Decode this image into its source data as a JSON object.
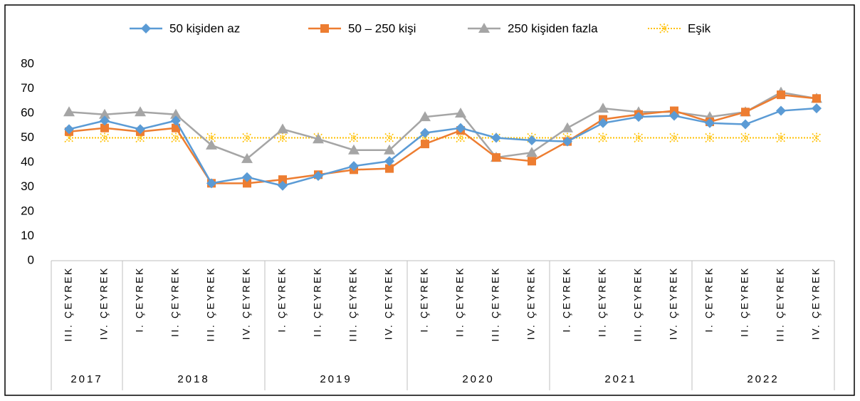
{
  "chart_data": {
    "type": "line",
    "categories": [
      "III. ÇEYREK",
      "IV. ÇEYREK",
      "I. ÇEYREK",
      "II. ÇEYREK",
      "III. ÇEYREK",
      "IV. ÇEYREK",
      "I. ÇEYREK",
      "II. ÇEYREK",
      "III. ÇEYREK",
      "IV. ÇEYREK",
      "I. ÇEYREK",
      "II. ÇEYREK",
      "III. ÇEYREK",
      "IV. ÇEYREK",
      "I. ÇEYREK",
      "II. ÇEYREK",
      "III. ÇEYREK",
      "IV. ÇEYREK",
      "I. ÇEYREK",
      "II. ÇEYREK",
      "III. ÇEYREK",
      "IV. ÇEYREK"
    ],
    "category_years": [
      "2017",
      "2017",
      "2018",
      "2018",
      "2018",
      "2018",
      "2019",
      "2019",
      "2019",
      "2019",
      "2020",
      "2020",
      "2020",
      "2020",
      "2021",
      "2021",
      "2021",
      "2021",
      "2022",
      "2022",
      "2022",
      "2022"
    ],
    "series": [
      {
        "name": "50 kişiden az",
        "color": "#5b9bd5",
        "marker": "diamond",
        "values": [
          53.5,
          57,
          53.5,
          57,
          31.5,
          34,
          30.5,
          34.5,
          38.5,
          40.5,
          52,
          54,
          50,
          49,
          48.5,
          56,
          58.5,
          59,
          56,
          55.5,
          61,
          62
        ]
      },
      {
        "name": "50 – 250 kişi",
        "color": "#ed7d31",
        "marker": "square",
        "values": [
          52.5,
          54,
          52.5,
          54,
          31.5,
          31.5,
          33,
          35,
          37,
          37.5,
          47.5,
          53,
          42,
          40.5,
          48.5,
          57.5,
          59.5,
          61,
          56.5,
          60.5,
          67.5,
          66
        ]
      },
      {
        "name": "250 kişiden fazla",
        "color": "#a5a5a5",
        "marker": "triangle",
        "values": [
          60.5,
          59.5,
          60.5,
          59.5,
          47,
          41.5,
          53.5,
          49.5,
          45,
          45,
          58.5,
          60,
          42,
          44,
          54,
          62,
          60.5,
          60.5,
          58.5,
          60.5,
          68.5,
          66
        ]
      },
      {
        "name": "Eşik",
        "color": "#ffc000",
        "marker": "star",
        "dashed": true,
        "values": [
          50,
          50,
          50,
          50,
          50,
          50,
          50,
          50,
          50,
          50,
          50,
          50,
          50,
          50,
          50,
          50,
          50,
          50,
          50,
          50,
          50,
          50
        ]
      }
    ],
    "ylim": [
      0,
      80
    ],
    "yticks": [
      0,
      10,
      20,
      30,
      40,
      50,
      60,
      70,
      80
    ],
    "grid": false,
    "legend": "top"
  }
}
